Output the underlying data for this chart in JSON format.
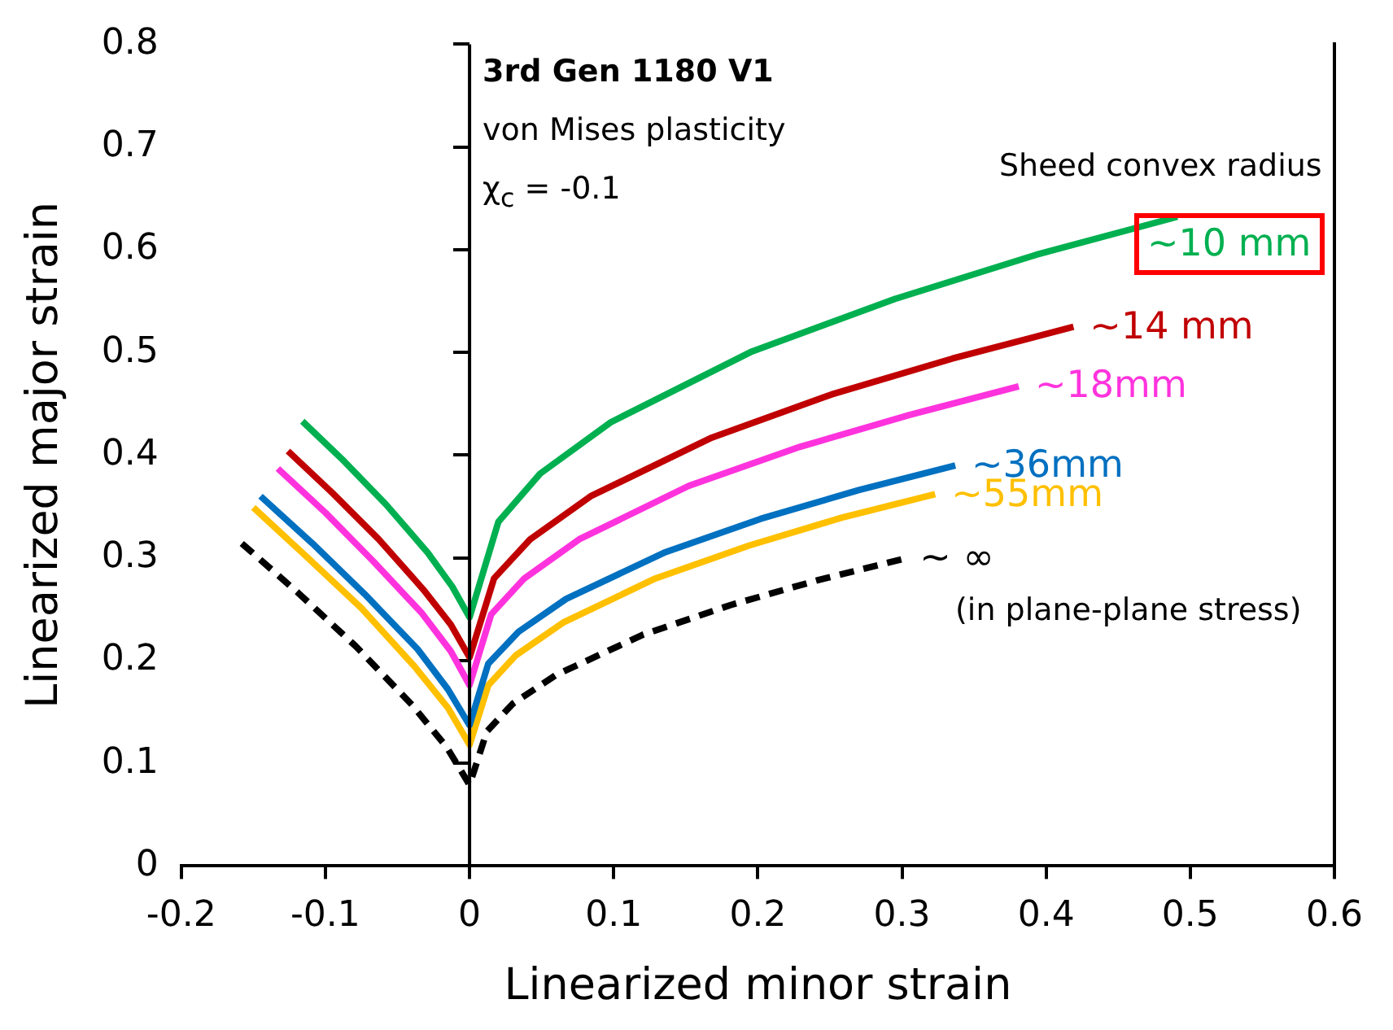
{
  "chart_data": {
    "type": "line",
    "xlabel": "Linearized minor strain",
    "ylabel": "Linearized major strain",
    "xlim": [
      -0.2,
      0.6
    ],
    "xticks": [
      -0.2,
      -0.1,
      0,
      0.1,
      0.2,
      0.3,
      0.4,
      0.5,
      0.6
    ],
    "ylim": [
      0,
      0.8
    ],
    "yticks": [
      0,
      0.1,
      0.2,
      0.3,
      0.4,
      0.5,
      0.6,
      0.7,
      0.8
    ],
    "grid": false,
    "ref_lines": [
      {
        "axis": "x",
        "value": 0,
        "color": "#000000"
      }
    ],
    "legend": false,
    "marker": "none",
    "line_style": "solid",
    "annotations": [
      "3rd Gen 1180 V1",
      "von Mises plasticity",
      "χ$_{c}$ = -0.1",
      "Sheed convex radius",
      "(in plane-plane stress)"
    ],
    "series": [
      {
        "name": "~10 mm",
        "color": "#00b050",
        "x": [
          -0.116,
          -0.087,
          -0.058,
          -0.029,
          -0.012,
          0,
          0.02,
          0.049,
          0.098,
          0.196,
          0.295,
          0.393,
          0.491
        ],
        "values": [
          0.433,
          0.394,
          0.352,
          0.305,
          0.272,
          0.242,
          0.335,
          0.382,
          0.432,
          0.501,
          0.552,
          0.595,
          0.632
        ]
      },
      {
        "name": "~14 mm",
        "color": "#c00000",
        "x": [
          -0.126,
          -0.095,
          -0.063,
          -0.032,
          -0.013,
          0,
          0.017,
          0.042,
          0.084,
          0.168,
          0.251,
          0.335,
          0.419
        ],
        "values": [
          0.404,
          0.363,
          0.318,
          0.269,
          0.235,
          0.203,
          0.28,
          0.318,
          0.36,
          0.417,
          0.459,
          0.494,
          0.525
        ]
      },
      {
        "name": "~18mm",
        "color": "#ff33dd",
        "x": [
          -0.133,
          -0.1,
          -0.067,
          -0.033,
          -0.013,
          0,
          0.015,
          0.038,
          0.076,
          0.152,
          0.229,
          0.305,
          0.381
        ],
        "values": [
          0.387,
          0.344,
          0.297,
          0.246,
          0.209,
          0.176,
          0.245,
          0.28,
          0.318,
          0.37,
          0.408,
          0.439,
          0.467
        ]
      },
      {
        "name": "~36mm",
        "color": "#0070c0",
        "x": [
          -0.145,
          -0.109,
          -0.073,
          -0.036,
          -0.015,
          0,
          0.013,
          0.034,
          0.067,
          0.135,
          0.202,
          0.27,
          0.337
        ],
        "values": [
          0.36,
          0.314,
          0.265,
          0.211,
          0.172,
          0.137,
          0.197,
          0.228,
          0.26,
          0.305,
          0.338,
          0.366,
          0.39
        ]
      },
      {
        "name": "~55mm",
        "color": "#ffc000",
        "x": [
          -0.15,
          -0.113,
          -0.075,
          -0.038,
          -0.015,
          0,
          0.013,
          0.032,
          0.065,
          0.129,
          0.194,
          0.258,
          0.323
        ],
        "values": [
          0.349,
          0.301,
          0.251,
          0.194,
          0.154,
          0.118,
          0.176,
          0.205,
          0.237,
          0.28,
          0.312,
          0.339,
          0.362
        ]
      },
      {
        "name": "~ ∞",
        "color": "#000000",
        "line_style": "dashed",
        "x": [
          -0.158,
          -0.119,
          -0.079,
          -0.04,
          -0.016,
          0,
          0.012,
          0.03,
          0.06,
          0.12,
          0.181,
          0.241,
          0.301
        ],
        "values": [
          0.314,
          0.266,
          0.214,
          0.157,
          0.116,
          0.079,
          0.131,
          0.158,
          0.186,
          0.225,
          0.254,
          0.278,
          0.299
        ]
      }
    ]
  }
}
